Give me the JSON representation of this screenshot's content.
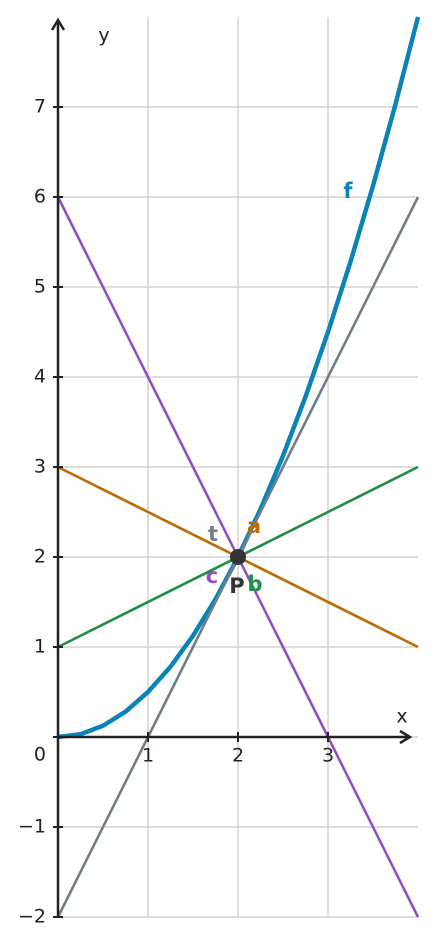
{
  "chart_data": {
    "type": "line",
    "x_label": "x",
    "y_label": "y",
    "xlim": [
      0,
      4
    ],
    "ylim": [
      -2,
      8
    ],
    "xticks": [
      1,
      2,
      3
    ],
    "yticks": [
      {
        "value": -2,
        "label": "−2"
      },
      {
        "value": -1,
        "label": "−1"
      },
      0,
      1,
      2,
      3,
      4,
      5,
      6,
      7
    ],
    "grid": true,
    "series": [
      {
        "name": "f",
        "color": "#0a84b8",
        "x": [
          0,
          0.25,
          0.5,
          0.75,
          1,
          1.25,
          1.5,
          1.75,
          2,
          2.25,
          2.5,
          2.75,
          3,
          3.25,
          3.5,
          3.75,
          4
        ],
        "values": [
          0,
          0.03125,
          0.125,
          0.28125,
          0.5,
          0.78125,
          1.125,
          1.53125,
          2,
          2.53125,
          3.125,
          3.78125,
          4.5,
          5.28125,
          6.125,
          7.03125,
          8
        ]
      },
      {
        "name": "t",
        "color": "#6e7f8a",
        "x": [
          0,
          4
        ],
        "values": [
          -2,
          6
        ]
      },
      {
        "name": "a",
        "color": "#c06a00",
        "x": [
          0,
          4
        ],
        "values": [
          3,
          1
        ]
      },
      {
        "name": "b",
        "color": "#1e9148",
        "x": [
          0,
          4
        ],
        "values": [
          1,
          3
        ]
      },
      {
        "name": "c",
        "color": "#9050c0",
        "x": [
          0,
          4
        ],
        "values": [
          6,
          -2
        ]
      }
    ],
    "markers": [
      {
        "name": "P",
        "x": 2,
        "y": 2,
        "color": "#333333"
      }
    ]
  }
}
